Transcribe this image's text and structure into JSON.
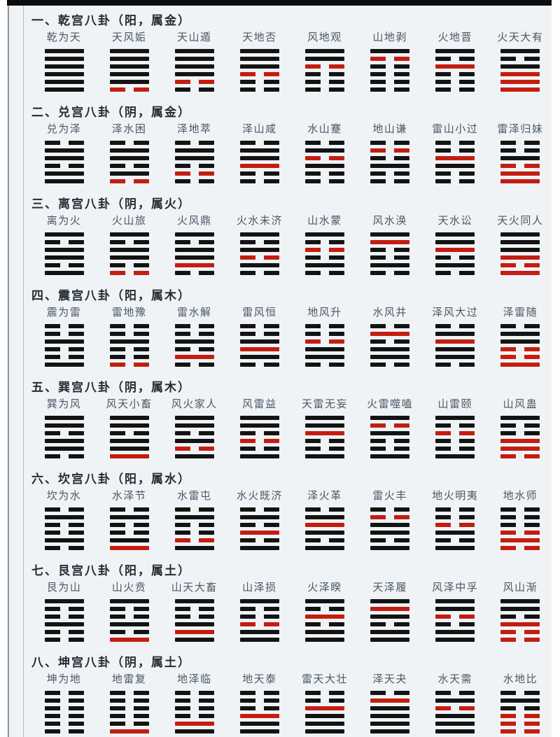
{
  "colors": {
    "background": "#eff3f6",
    "top_edge": "#0d0d0d",
    "line_black": "#131313",
    "line_red": "#c41d10",
    "header_text": "#232c34",
    "name_text": "#4a5764"
  },
  "line_code_key": {
    "S": "solid black yang line",
    "B": "broken black yin line",
    "R": "solid red yang line",
    "r": "broken red yin line",
    "order": "top to bottom"
  },
  "palaces": [
    {
      "header": "一、乾宫八卦（阳，属金）",
      "hexagrams": [
        {
          "name": "乾为天",
          "lines": [
            "S",
            "S",
            "S",
            "S",
            "S",
            "S"
          ]
        },
        {
          "name": "天风姤",
          "lines": [
            "S",
            "S",
            "S",
            "S",
            "S",
            "r"
          ]
        },
        {
          "name": "天山遁",
          "lines": [
            "S",
            "S",
            "S",
            "S",
            "r",
            "B"
          ]
        },
        {
          "name": "天地否",
          "lines": [
            "S",
            "S",
            "S",
            "r",
            "B",
            "B"
          ]
        },
        {
          "name": "风地观",
          "lines": [
            "S",
            "S",
            "r",
            "B",
            "B",
            "B"
          ]
        },
        {
          "name": "山地剥",
          "lines": [
            "S",
            "r",
            "B",
            "B",
            "B",
            "B"
          ]
        },
        {
          "name": "火地晋",
          "lines": [
            "S",
            "B",
            "R",
            "B",
            "B",
            "B"
          ]
        },
        {
          "name": "火天大有",
          "lines": [
            "S",
            "B",
            "S",
            "R",
            "R",
            "R"
          ]
        }
      ]
    },
    {
      "header": "二、兑宫八卦（阴，属金）",
      "hexagrams": [
        {
          "name": "兑为泽",
          "lines": [
            "B",
            "S",
            "S",
            "B",
            "S",
            "S"
          ]
        },
        {
          "name": "泽水困",
          "lines": [
            "B",
            "S",
            "S",
            "B",
            "S",
            "r"
          ]
        },
        {
          "name": "泽地萃",
          "lines": [
            "B",
            "S",
            "S",
            "B",
            "r",
            "B"
          ]
        },
        {
          "name": "泽山咸",
          "lines": [
            "B",
            "S",
            "S",
            "R",
            "B",
            "B"
          ]
        },
        {
          "name": "水山蹇",
          "lines": [
            "B",
            "S",
            "r",
            "S",
            "B",
            "B"
          ]
        },
        {
          "name": "地山谦",
          "lines": [
            "B",
            "r",
            "B",
            "S",
            "B",
            "B"
          ]
        },
        {
          "name": "雷山小过",
          "lines": [
            "B",
            "B",
            "R",
            "S",
            "B",
            "B"
          ]
        },
        {
          "name": "雷泽归妹",
          "lines": [
            "B",
            "B",
            "S",
            "r",
            "R",
            "R"
          ]
        }
      ]
    },
    {
      "header": "三、离宫八卦（阴，属火）",
      "hexagrams": [
        {
          "name": "离为火",
          "lines": [
            "S",
            "B",
            "S",
            "S",
            "B",
            "S"
          ]
        },
        {
          "name": "火山旅",
          "lines": [
            "S",
            "B",
            "S",
            "S",
            "B",
            "r"
          ]
        },
        {
          "name": "火风鼎",
          "lines": [
            "S",
            "B",
            "S",
            "S",
            "R",
            "B"
          ]
        },
        {
          "name": "火水未济",
          "lines": [
            "S",
            "B",
            "S",
            "r",
            "S",
            "B"
          ]
        },
        {
          "name": "山水蒙",
          "lines": [
            "S",
            "B",
            "r",
            "B",
            "S",
            "B"
          ]
        },
        {
          "name": "风水涣",
          "lines": [
            "S",
            "R",
            "B",
            "B",
            "S",
            "B"
          ]
        },
        {
          "name": "天水讼",
          "lines": [
            "S",
            "S",
            "R",
            "B",
            "S",
            "B"
          ]
        },
        {
          "name": "天火同人",
          "lines": [
            "S",
            "S",
            "S",
            "R",
            "r",
            "R"
          ]
        }
      ]
    },
    {
      "header": "四、震宫八卦（阳，属木）",
      "hexagrams": [
        {
          "name": "震为雷",
          "lines": [
            "B",
            "B",
            "S",
            "B",
            "B",
            "S"
          ]
        },
        {
          "name": "雷地豫",
          "lines": [
            "B",
            "B",
            "S",
            "B",
            "B",
            "r"
          ]
        },
        {
          "name": "雷水解",
          "lines": [
            "B",
            "B",
            "S",
            "B",
            "R",
            "B"
          ]
        },
        {
          "name": "雷风恒",
          "lines": [
            "B",
            "B",
            "S",
            "R",
            "S",
            "B"
          ]
        },
        {
          "name": "地风升",
          "lines": [
            "B",
            "B",
            "r",
            "S",
            "S",
            "B"
          ]
        },
        {
          "name": "水风井",
          "lines": [
            "B",
            "R",
            "B",
            "S",
            "S",
            "B"
          ]
        },
        {
          "name": "泽风大过",
          "lines": [
            "B",
            "S",
            "R",
            "S",
            "S",
            "B"
          ]
        },
        {
          "name": "泽雷随",
          "lines": [
            "B",
            "S",
            "S",
            "r",
            "r",
            "R"
          ]
        }
      ]
    },
    {
      "header": "五、巽宫八卦（阴，属木）",
      "hexagrams": [
        {
          "name": "巽为风",
          "lines": [
            "S",
            "S",
            "B",
            "S",
            "S",
            "B"
          ]
        },
        {
          "name": "风天小畜",
          "lines": [
            "S",
            "S",
            "B",
            "S",
            "S",
            "R"
          ]
        },
        {
          "name": "风火家人",
          "lines": [
            "S",
            "S",
            "B",
            "S",
            "r",
            "S"
          ]
        },
        {
          "name": "风雷益",
          "lines": [
            "S",
            "S",
            "B",
            "r",
            "B",
            "S"
          ]
        },
        {
          "name": "天雷无妄",
          "lines": [
            "S",
            "S",
            "R",
            "B",
            "B",
            "S"
          ]
        },
        {
          "name": "火雷噬嗑",
          "lines": [
            "S",
            "r",
            "S",
            "B",
            "B",
            "S"
          ]
        },
        {
          "name": "山雷颐",
          "lines": [
            "S",
            "B",
            "r",
            "B",
            "B",
            "S"
          ]
        },
        {
          "name": "山风蛊",
          "lines": [
            "S",
            "B",
            "B",
            "R",
            "R",
            "r"
          ]
        }
      ]
    },
    {
      "header": "六、坎宫八卦（阳，属水）",
      "hexagrams": [
        {
          "name": "坎为水",
          "lines": [
            "B",
            "S",
            "B",
            "B",
            "S",
            "B"
          ]
        },
        {
          "name": "水泽节",
          "lines": [
            "B",
            "S",
            "B",
            "B",
            "S",
            "R"
          ]
        },
        {
          "name": "水雷屯",
          "lines": [
            "B",
            "S",
            "B",
            "B",
            "r",
            "S"
          ]
        },
        {
          "name": "水火既济",
          "lines": [
            "B",
            "S",
            "B",
            "R",
            "B",
            "S"
          ]
        },
        {
          "name": "泽火革",
          "lines": [
            "B",
            "S",
            "R",
            "S",
            "B",
            "S"
          ]
        },
        {
          "name": "雷火丰",
          "lines": [
            "B",
            "r",
            "S",
            "S",
            "B",
            "S"
          ]
        },
        {
          "name": "地火明夷",
          "lines": [
            "B",
            "B",
            "r",
            "S",
            "B",
            "S"
          ]
        },
        {
          "name": "地水师",
          "lines": [
            "B",
            "B",
            "B",
            "r",
            "R",
            "r"
          ]
        }
      ]
    },
    {
      "header": "七、艮宫八卦（阳，属土）",
      "hexagrams": [
        {
          "name": "艮为山",
          "lines": [
            "S",
            "B",
            "B",
            "S",
            "B",
            "B"
          ]
        },
        {
          "name": "山火贲",
          "lines": [
            "S",
            "B",
            "B",
            "S",
            "B",
            "R"
          ]
        },
        {
          "name": "山天大畜",
          "lines": [
            "S",
            "B",
            "B",
            "S",
            "R",
            "S"
          ]
        },
        {
          "name": "山泽损",
          "lines": [
            "S",
            "B",
            "B",
            "r",
            "S",
            "S"
          ]
        },
        {
          "name": "火泽睽",
          "lines": [
            "S",
            "B",
            "R",
            "B",
            "S",
            "S"
          ]
        },
        {
          "name": "天泽履",
          "lines": [
            "S",
            "R",
            "S",
            "B",
            "S",
            "S"
          ]
        },
        {
          "name": "风泽中孚",
          "lines": [
            "S",
            "S",
            "r",
            "B",
            "S",
            "S"
          ]
        },
        {
          "name": "风山渐",
          "lines": [
            "S",
            "S",
            "B",
            "R",
            "r",
            "r"
          ]
        }
      ]
    },
    {
      "header": "八、坤宫八卦（阴，属土）",
      "hexagrams": [
        {
          "name": "坤为地",
          "lines": [
            "B",
            "B",
            "B",
            "B",
            "B",
            "B"
          ]
        },
        {
          "name": "地雷复",
          "lines": [
            "B",
            "B",
            "B",
            "B",
            "B",
            "R"
          ]
        },
        {
          "name": "地泽临",
          "lines": [
            "B",
            "B",
            "B",
            "B",
            "R",
            "S"
          ]
        },
        {
          "name": "地天泰",
          "lines": [
            "B",
            "B",
            "B",
            "R",
            "S",
            "S"
          ]
        },
        {
          "name": "雷天大壮",
          "lines": [
            "B",
            "B",
            "R",
            "S",
            "S",
            "S"
          ]
        },
        {
          "name": "泽天夬",
          "lines": [
            "B",
            "R",
            "S",
            "S",
            "S",
            "S"
          ]
        },
        {
          "name": "水天需",
          "lines": [
            "B",
            "S",
            "r",
            "S",
            "S",
            "S"
          ]
        },
        {
          "name": "水地比",
          "lines": [
            "B",
            "S",
            "B",
            "r",
            "r",
            "r"
          ]
        }
      ]
    }
  ]
}
